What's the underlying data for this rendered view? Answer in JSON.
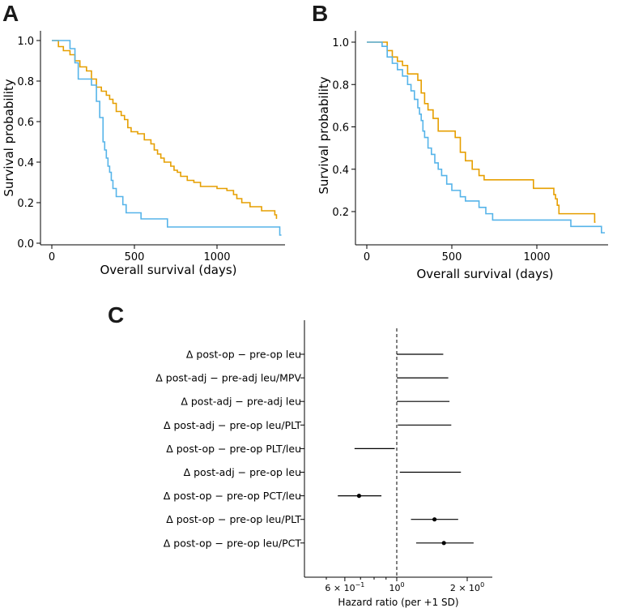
{
  "colors": {
    "orange": "#E69F00",
    "blue": "#56B4E9",
    "black": "#000000"
  },
  "chart_data": [
    {
      "type": "line",
      "panel": "A",
      "xlabel": "Overall survival (days)",
      "ylabel": "Survival probability",
      "xlim": [
        -60,
        1420
      ],
      "ylim": [
        -0.01,
        1.05
      ],
      "xticks": [
        {
          "v": 0,
          "label": "0"
        },
        {
          "v": 500,
          "label": "500"
        },
        {
          "v": 1000,
          "label": "1000"
        }
      ],
      "yticks": [
        {
          "v": 0.0,
          "label": "0.0"
        },
        {
          "v": 0.2,
          "label": "0.2"
        },
        {
          "v": 0.4,
          "label": "0.4"
        },
        {
          "v": 0.6,
          "label": "0.6"
        },
        {
          "v": 0.8,
          "label": "0.8"
        },
        {
          "v": 1.0,
          "label": "1.0"
        }
      ],
      "series": [
        {
          "color_key": "orange",
          "steps": [
            [
              0,
              1.0
            ],
            [
              40,
              0.97
            ],
            [
              70,
              0.95
            ],
            [
              110,
              0.93
            ],
            [
              140,
              0.9
            ],
            [
              170,
              0.87
            ],
            [
              210,
              0.85
            ],
            [
              240,
              0.81
            ],
            [
              270,
              0.77
            ],
            [
              300,
              0.75
            ],
            [
              330,
              0.73
            ],
            [
              350,
              0.71
            ],
            [
              370,
              0.69
            ],
            [
              390,
              0.65
            ],
            [
              420,
              0.63
            ],
            [
              440,
              0.61
            ],
            [
              460,
              0.57
            ],
            [
              480,
              0.55
            ],
            [
              520,
              0.54
            ],
            [
              560,
              0.51
            ],
            [
              600,
              0.49
            ],
            [
              620,
              0.46
            ],
            [
              640,
              0.44
            ],
            [
              660,
              0.42
            ],
            [
              680,
              0.4
            ],
            [
              720,
              0.38
            ],
            [
              740,
              0.36
            ],
            [
              760,
              0.35
            ],
            [
              780,
              0.33
            ],
            [
              820,
              0.31
            ],
            [
              860,
              0.3
            ],
            [
              900,
              0.28
            ],
            [
              1000,
              0.27
            ],
            [
              1060,
              0.26
            ],
            [
              1100,
              0.24
            ],
            [
              1120,
              0.22
            ],
            [
              1150,
              0.2
            ],
            [
              1200,
              0.18
            ],
            [
              1270,
              0.16
            ],
            [
              1350,
              0.14
            ],
            [
              1360,
              0.12
            ]
          ],
          "x_end": 1360
        },
        {
          "color_key": "blue",
          "steps": [
            [
              0,
              1.0
            ],
            [
              110,
              0.96
            ],
            [
              140,
              0.89
            ],
            [
              160,
              0.81
            ],
            [
              240,
              0.78
            ],
            [
              270,
              0.7
            ],
            [
              290,
              0.62
            ],
            [
              310,
              0.5
            ],
            [
              320,
              0.46
            ],
            [
              330,
              0.42
            ],
            [
              340,
              0.38
            ],
            [
              350,
              0.35
            ],
            [
              360,
              0.31
            ],
            [
              370,
              0.27
            ],
            [
              390,
              0.23
            ],
            [
              430,
              0.19
            ],
            [
              450,
              0.15
            ],
            [
              540,
              0.12
            ],
            [
              700,
              0.08
            ],
            [
              1380,
              0.04
            ]
          ],
          "x_end": 1390
        }
      ]
    },
    {
      "type": "line",
      "panel": "B",
      "xlabel": "Overall survival (days)",
      "ylabel": "Survival probability",
      "xlim": [
        -60,
        1420
      ],
      "ylim": [
        0.075,
        1.05
      ],
      "xticks": [
        {
          "v": 0,
          "label": "0"
        },
        {
          "v": 500,
          "label": "500"
        },
        {
          "v": 1000,
          "label": "1000"
        }
      ],
      "yticks": [
        {
          "v": 0.2,
          "label": "0.2"
        },
        {
          "v": 0.4,
          "label": "0.4"
        },
        {
          "v": 0.6,
          "label": "0.6"
        },
        {
          "v": 0.8,
          "label": "0.8"
        },
        {
          "v": 1.0,
          "label": "1.0"
        }
      ],
      "series": [
        {
          "color_key": "orange",
          "steps": [
            [
              0,
              1.0
            ],
            [
              120,
              0.96
            ],
            [
              150,
              0.93
            ],
            [
              180,
              0.91
            ],
            [
              210,
              0.89
            ],
            [
              240,
              0.85
            ],
            [
              300,
              0.82
            ],
            [
              320,
              0.76
            ],
            [
              340,
              0.71
            ],
            [
              360,
              0.68
            ],
            [
              390,
              0.64
            ],
            [
              420,
              0.58
            ],
            [
              520,
              0.55
            ],
            [
              550,
              0.48
            ],
            [
              580,
              0.44
            ],
            [
              620,
              0.4
            ],
            [
              660,
              0.37
            ],
            [
              690,
              0.35
            ],
            [
              980,
              0.31
            ],
            [
              1100,
              0.28
            ],
            [
              1110,
              0.26
            ],
            [
              1120,
              0.23
            ],
            [
              1130,
              0.19
            ],
            [
              1340,
              0.15
            ]
          ],
          "x_end": 1345
        },
        {
          "color_key": "blue",
          "steps": [
            [
              0,
              1.0
            ],
            [
              90,
              0.98
            ],
            [
              120,
              0.93
            ],
            [
              150,
              0.9
            ],
            [
              180,
              0.87
            ],
            [
              210,
              0.84
            ],
            [
              240,
              0.8
            ],
            [
              260,
              0.77
            ],
            [
              280,
              0.73
            ],
            [
              300,
              0.69
            ],
            [
              310,
              0.66
            ],
            [
              320,
              0.63
            ],
            [
              330,
              0.58
            ],
            [
              340,
              0.55
            ],
            [
              360,
              0.5
            ],
            [
              380,
              0.47
            ],
            [
              400,
              0.43
            ],
            [
              420,
              0.4
            ],
            [
              440,
              0.37
            ],
            [
              470,
              0.33
            ],
            [
              500,
              0.3
            ],
            [
              550,
              0.27
            ],
            [
              580,
              0.25
            ],
            [
              660,
              0.22
            ],
            [
              700,
              0.19
            ],
            [
              740,
              0.16
            ],
            [
              1200,
              0.13
            ],
            [
              1380,
              0.1
            ]
          ],
          "x_end": 1400
        }
      ]
    },
    {
      "type": "forest",
      "panel": "C",
      "xlabel": "Hazard ratio (per +1 SD)",
      "xscale": "log",
      "xlim": [
        0.5,
        2.4
      ],
      "reference_line": 1.0,
      "xticks": [
        {
          "v": 0.6,
          "base": "6 × 10",
          "exp": "−1"
        },
        {
          "v": 1.0,
          "base": "10",
          "exp": "0"
        },
        {
          "v": 2.0,
          "base": "2 × 10",
          "exp": "0"
        }
      ],
      "rows": [
        {
          "label": "Δ post-op − pre-op leu",
          "lo": 1.0,
          "hi": 1.58,
          "hr": null
        },
        {
          "label": "Δ post-adj − pre-adj leu/MPV",
          "lo": 1.0,
          "hi": 1.66,
          "hr": null
        },
        {
          "label": "Δ post-adj − pre-adj leu",
          "lo": 1.0,
          "hi": 1.68,
          "hr": null
        },
        {
          "label": "Δ post-adj − pre-op leu/PLT",
          "lo": 1.01,
          "hi": 1.71,
          "hr": null
        },
        {
          "label": "Δ post-op − pre-op PLT/leu",
          "lo": 0.66,
          "hi": 0.98,
          "hr": null
        },
        {
          "label": "Δ post-adj − pre-op leu",
          "lo": 1.03,
          "hi": 1.88,
          "hr": null
        },
        {
          "label": "Δ post-op − pre-op PCT/leu",
          "lo": 0.56,
          "hi": 0.86,
          "hr": 0.69
        },
        {
          "label": "Δ post-op − pre-op leu/PLT",
          "lo": 1.15,
          "hi": 1.83,
          "hr": 1.45
        },
        {
          "label": "Δ post-op − pre-op leu/PCT",
          "lo": 1.21,
          "hi": 2.13,
          "hr": 1.59
        }
      ]
    }
  ]
}
